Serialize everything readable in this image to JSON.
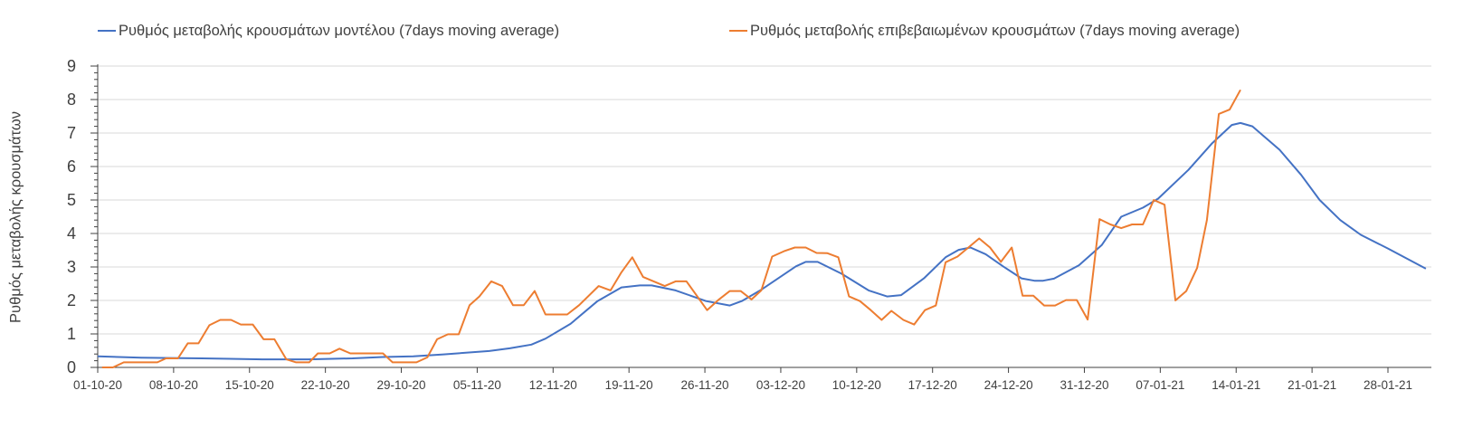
{
  "chart_data": {
    "type": "line",
    "title": "",
    "xlabel": "",
    "ylabel": "Ρυθμός μεταβολής κρουσμάτων",
    "ylim": [
      0,
      9
    ],
    "yticks": [
      "0",
      "1",
      "2",
      "3",
      "4",
      "5",
      "6",
      "7",
      "8",
      "9"
    ],
    "x_unit": "days since 01-10-20",
    "xlim": [
      0,
      123
    ],
    "xticks": [
      {
        "day": 0,
        "label": "01-10-20"
      },
      {
        "day": 7,
        "label": "08-10-20"
      },
      {
        "day": 14,
        "label": "15-10-20"
      },
      {
        "day": 21,
        "label": "22-10-20"
      },
      {
        "day": 28,
        "label": "29-10-20"
      },
      {
        "day": 35,
        "label": "05-11-20"
      },
      {
        "day": 42,
        "label": "12-11-20"
      },
      {
        "day": 49,
        "label": "19-11-20"
      },
      {
        "day": 56,
        "label": "26-11-20"
      },
      {
        "day": 63,
        "label": "03-12-20"
      },
      {
        "day": 70,
        "label": "10-12-20"
      },
      {
        "day": 77,
        "label": "17-12-20"
      },
      {
        "day": 84,
        "label": "24-12-20"
      },
      {
        "day": 91,
        "label": "31-12-20"
      },
      {
        "day": 98,
        "label": "07-01-21"
      },
      {
        "day": 105,
        "label": "14-01-21"
      },
      {
        "day": 112,
        "label": "21-01-21"
      },
      {
        "day": 119,
        "label": "28-01-21"
      }
    ],
    "grid": true,
    "legend_position": "top",
    "series": [
      {
        "name": "Ρυθμός μεταβολής κρουσμάτων μοντέλου (7days moving average)",
        "color": "#4472C4",
        "points": [
          [
            0,
            0.33
          ],
          [
            4,
            0.29
          ],
          [
            9.6,
            0.27
          ],
          [
            15.2,
            0.24
          ],
          [
            19.4,
            0.24
          ],
          [
            23.5,
            0.27
          ],
          [
            26.3,
            0.31
          ],
          [
            29.1,
            0.33
          ],
          [
            31.9,
            0.39
          ],
          [
            36.1,
            0.49
          ],
          [
            38,
            0.57
          ],
          [
            40,
            0.68
          ],
          [
            41.3,
            0.86
          ],
          [
            43.6,
            1.3
          ],
          [
            46.1,
            1.98
          ],
          [
            48.3,
            2.39
          ],
          [
            50,
            2.45
          ],
          [
            51.1,
            2.45
          ],
          [
            53.3,
            2.3
          ],
          [
            56.1,
            1.98
          ],
          [
            58.3,
            1.85
          ],
          [
            59.4,
            1.98
          ],
          [
            61.1,
            2.3
          ],
          [
            64.4,
            3.02
          ],
          [
            65.3,
            3.15
          ],
          [
            66.4,
            3.15
          ],
          [
            68.6,
            2.8
          ],
          [
            71.1,
            2.3
          ],
          [
            72.8,
            2.12
          ],
          [
            74.1,
            2.16
          ],
          [
            76.2,
            2.66
          ],
          [
            78.2,
            3.29
          ],
          [
            79.4,
            3.51
          ],
          [
            80.5,
            3.58
          ],
          [
            81.9,
            3.38
          ],
          [
            83.5,
            3.02
          ],
          [
            85.2,
            2.66
          ],
          [
            86.4,
            2.59
          ],
          [
            87.2,
            2.59
          ],
          [
            88.2,
            2.65
          ],
          [
            90.5,
            3.05
          ],
          [
            92.6,
            3.65
          ],
          [
            94.4,
            4.5
          ],
          [
            96.4,
            4.77
          ],
          [
            97.8,
            5.04
          ],
          [
            100.6,
            5.9
          ],
          [
            102.8,
            6.7
          ],
          [
            104.6,
            7.24
          ],
          [
            105.4,
            7.3
          ],
          [
            106.5,
            7.2
          ],
          [
            109,
            6.5
          ],
          [
            111,
            5.75
          ],
          [
            112.7,
            5.0
          ],
          [
            114.6,
            4.4
          ],
          [
            116.5,
            3.96
          ],
          [
            119,
            3.55
          ],
          [
            122.5,
            2.95
          ]
        ]
      },
      {
        "name": "Ρυθμός μεταβολής επιβεβαιωμένων κρουσμάτων (7days moving average)",
        "color": "#ED7D31",
        "points": [
          [
            0.4,
            0
          ],
          [
            1.4,
            0
          ],
          [
            2.4,
            0.15
          ],
          [
            5.5,
            0.15
          ],
          [
            6.3,
            0.27
          ],
          [
            7.4,
            0.27
          ],
          [
            8.3,
            0.72
          ],
          [
            9.3,
            0.72
          ],
          [
            10.3,
            1.26
          ],
          [
            11.3,
            1.42
          ],
          [
            12.3,
            1.42
          ],
          [
            13.2,
            1.28
          ],
          [
            14.3,
            1.28
          ],
          [
            15.3,
            0.84
          ],
          [
            16.3,
            0.84
          ],
          [
            17.4,
            0.24
          ],
          [
            18.3,
            0.15
          ],
          [
            19.5,
            0.15
          ],
          [
            20.3,
            0.42
          ],
          [
            21.4,
            0.42
          ],
          [
            22.3,
            0.56
          ],
          [
            23.3,
            0.42
          ],
          [
            26.3,
            0.42
          ],
          [
            27.2,
            0.15
          ],
          [
            29.4,
            0.15
          ],
          [
            30.4,
            0.3
          ],
          [
            31.3,
            0.84
          ],
          [
            32.3,
            0.99
          ],
          [
            33.3,
            0.99
          ],
          [
            34.3,
            1.86
          ],
          [
            35.2,
            2.12
          ],
          [
            36.3,
            2.57
          ],
          [
            37.3,
            2.43
          ],
          [
            38.3,
            1.86
          ],
          [
            39.3,
            1.86
          ],
          [
            40.3,
            2.28
          ],
          [
            41.3,
            1.58
          ],
          [
            43.3,
            1.58
          ],
          [
            44.4,
            1.86
          ],
          [
            46.2,
            2.43
          ],
          [
            47.3,
            2.3
          ],
          [
            48.3,
            2.84
          ],
          [
            49.3,
            3.29
          ],
          [
            50.3,
            2.7
          ],
          [
            52.3,
            2.43
          ],
          [
            53.3,
            2.57
          ],
          [
            54.3,
            2.57
          ],
          [
            55.3,
            2.12
          ],
          [
            56.2,
            1.71
          ],
          [
            57.3,
            2.03
          ],
          [
            58.3,
            2.28
          ],
          [
            59.3,
            2.28
          ],
          [
            60.3,
            2.03
          ],
          [
            61.2,
            2.3
          ],
          [
            62.2,
            3.31
          ],
          [
            63.3,
            3.47
          ],
          [
            64.3,
            3.58
          ],
          [
            65.3,
            3.58
          ],
          [
            66.3,
            3.42
          ],
          [
            67.3,
            3.41
          ],
          [
            68.3,
            3.29
          ],
          [
            69.3,
            2.12
          ],
          [
            70.3,
            1.98
          ],
          [
            71.3,
            1.71
          ],
          [
            72.3,
            1.42
          ],
          [
            73.2,
            1.69
          ],
          [
            74.3,
            1.42
          ],
          [
            75.3,
            1.28
          ],
          [
            76.3,
            1.71
          ],
          [
            77.3,
            1.85
          ],
          [
            78.2,
            3.14
          ],
          [
            79.3,
            3.31
          ],
          [
            80.3,
            3.58
          ],
          [
            81.3,
            3.85
          ],
          [
            82.3,
            3.58
          ],
          [
            83.3,
            3.15
          ],
          [
            84.3,
            3.58
          ],
          [
            85.3,
            2.14
          ],
          [
            86.3,
            2.14
          ],
          [
            87.3,
            1.85
          ],
          [
            88.3,
            1.85
          ],
          [
            89.3,
            2.01
          ],
          [
            90.3,
            2.01
          ],
          [
            91.3,
            1.43
          ],
          [
            92.4,
            4.43
          ],
          [
            93.4,
            4.27
          ],
          [
            94.4,
            4.16
          ],
          [
            95.4,
            4.27
          ],
          [
            96.4,
            4.27
          ],
          [
            97.4,
            5.0
          ],
          [
            98.4,
            4.86
          ],
          [
            99.4,
            2.0
          ],
          [
            100.4,
            2.28
          ],
          [
            101.4,
            2.97
          ],
          [
            102.3,
            4.4
          ],
          [
            103.4,
            7.57
          ],
          [
            104.4,
            7.7
          ],
          [
            105.4,
            8.29
          ]
        ]
      }
    ]
  }
}
